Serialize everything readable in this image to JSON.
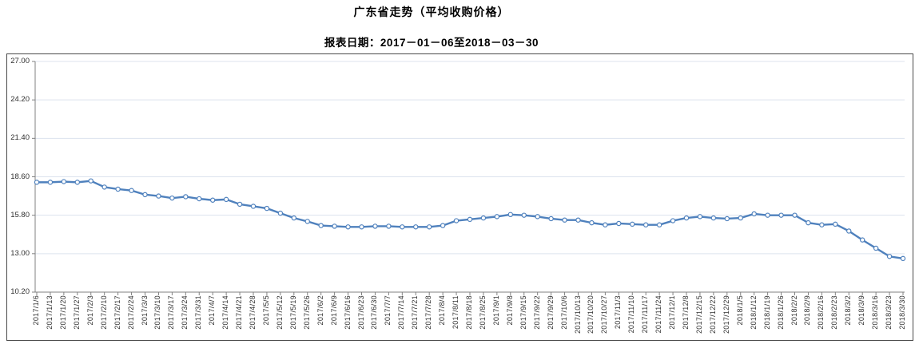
{
  "title": "广东省走势（平均收购价格）",
  "subtitle": "报表日期：2017－01－06至2018－03－30",
  "chart_data": {
    "type": "line",
    "title": "广东省走势（平均收购价格）",
    "subtitle": "报表日期：2017－01－06至2018－03－30",
    "x": [
      "2017/1/6",
      "2017/1/13",
      "2017/1/20",
      "2017/1/27",
      "2017/2/3",
      "2017/2/10",
      "2017/2/17",
      "2017/2/24",
      "2017/3/3",
      "2017/3/10",
      "2017/3/17",
      "2017/3/24",
      "2017/3/31",
      "2017/4/7",
      "2017/4/14",
      "2017/4/21",
      "2017/4/28",
      "2017/5/5",
      "2017/5/12",
      "2017/5/19",
      "2017/5/26",
      "2017/6/2",
      "2017/6/9",
      "2017/6/16",
      "2017/6/23",
      "2017/6/30",
      "2017/7/7",
      "2017/7/14",
      "2017/7/21",
      "2017/7/28",
      "2017/8/4",
      "2017/8/11",
      "2017/8/18",
      "2017/8/25",
      "2017/9/1",
      "2017/9/8",
      "2017/9/15",
      "2017/9/22",
      "2017/9/29",
      "2017/10/6",
      "2017/10/13",
      "2017/10/20",
      "2017/10/27",
      "2017/11/3",
      "2017/11/10",
      "2017/11/17",
      "2017/11/24",
      "2017/12/1",
      "2017/12/8",
      "2017/12/15",
      "2017/12/22",
      "2017/12/29",
      "2018/1/5",
      "2018/1/12",
      "2018/1/19",
      "2018/1/26",
      "2018/2/2",
      "2018/2/9",
      "2018/2/16",
      "2018/2/23",
      "2018/3/2",
      "2018/3/9",
      "2018/3/16",
      "2018/3/23",
      "2018/3/30"
    ],
    "series": [
      {
        "name": "平均收购价格",
        "color": "#4f81bd",
        "marker": "open-circle",
        "values": [
          18.2,
          18.2,
          18.25,
          18.2,
          18.3,
          17.85,
          17.7,
          17.6,
          17.3,
          17.2,
          17.05,
          17.15,
          17.0,
          16.9,
          16.95,
          16.6,
          16.45,
          16.3,
          15.95,
          15.6,
          15.35,
          15.05,
          15.0,
          14.95,
          14.95,
          15.0,
          15.0,
          14.95,
          14.95,
          14.95,
          15.05,
          15.4,
          15.5,
          15.6,
          15.7,
          15.85,
          15.8,
          15.7,
          15.55,
          15.45,
          15.45,
          15.25,
          15.1,
          15.2,
          15.15,
          15.1,
          15.1,
          15.4,
          15.6,
          15.7,
          15.6,
          15.55,
          15.6,
          15.9,
          15.8,
          15.8,
          15.8,
          15.25,
          15.1,
          15.15,
          14.65,
          14.0,
          13.4,
          12.8,
          12.65
        ]
      }
    ],
    "ylim": [
      10.2,
      27.0
    ],
    "yticks": [
      "10.20",
      "13.00",
      "15.80",
      "18.60",
      "21.40",
      "24.20",
      "27.00"
    ],
    "xlabel": "",
    "ylabel": "",
    "grid": "horizontal",
    "legend_position": "none",
    "x_label_rotation": -90,
    "axis_color": "#808080",
    "gridline_color": "#dce3ee",
    "text_color": "#303030",
    "border_color": "#4a4a4a",
    "background": "#ffffff"
  }
}
